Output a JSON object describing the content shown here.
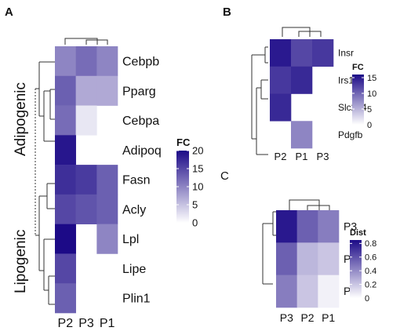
{
  "panels": {
    "a": "A",
    "b": "B",
    "c": "C"
  },
  "chart_data": [
    {
      "type": "heatmap",
      "id": "A",
      "title": "",
      "columns": [
        "P2",
        "P3",
        "P1"
      ],
      "rows": [
        "Cebpb",
        "Pparg",
        "Cebpa",
        "Adipoq",
        "Fasn",
        "Acly",
        "Lpl",
        "Lipe",
        "Plin1"
      ],
      "values": [
        [
          10,
          12,
          10
        ],
        [
          13,
          7,
          7
        ],
        [
          12,
          2,
          null
        ],
        [
          19,
          null,
          null
        ],
        [
          17,
          16,
          13
        ],
        [
          15,
          14,
          13
        ],
        [
          20,
          null,
          10
        ],
        [
          15,
          null,
          null
        ],
        [
          13,
          null,
          null
        ]
      ],
      "groups": [
        "Adipogenic",
        "Lipogenic"
      ],
      "legend": {
        "title": "FC",
        "ticks": [
          0,
          5,
          10,
          15,
          20
        ],
        "range": [
          0,
          20
        ],
        "low_color": "#ffffff",
        "high_color": "#1c0a87"
      }
    },
    {
      "type": "heatmap",
      "id": "B",
      "title": "",
      "columns": [
        "P2",
        "P1",
        "P3"
      ],
      "rows": [
        "Insr",
        "Irs1",
        "Slc2a4",
        "Pdgfb"
      ],
      "values": [
        [
          15,
          12,
          13
        ],
        [
          13,
          14,
          null
        ],
        [
          14,
          null,
          null
        ],
        [
          null,
          8,
          null
        ]
      ],
      "legend": {
        "title": "FC",
        "ticks": [
          0,
          5,
          10,
          15
        ],
        "range": [
          0,
          16
        ],
        "low_color": "#ffffff",
        "high_color": "#1c0a87"
      }
    },
    {
      "type": "heatmap",
      "id": "C",
      "title": "",
      "columns": [
        "P3",
        "P2",
        "P1"
      ],
      "rows": [
        "P3",
        "P2",
        "P1"
      ],
      "values": [
        [
          0.8,
          0.55,
          0.45
        ],
        [
          0.55,
          0.25,
          0.2
        ],
        [
          0.45,
          0.2,
          0.05
        ]
      ],
      "legend": {
        "title": "Dist",
        "ticks": [
          0,
          0.2,
          0.4,
          0.6,
          0.8
        ],
        "range": [
          0,
          0.85
        ],
        "low_color": "#ffffff",
        "high_color": "#1c0a87"
      }
    }
  ]
}
